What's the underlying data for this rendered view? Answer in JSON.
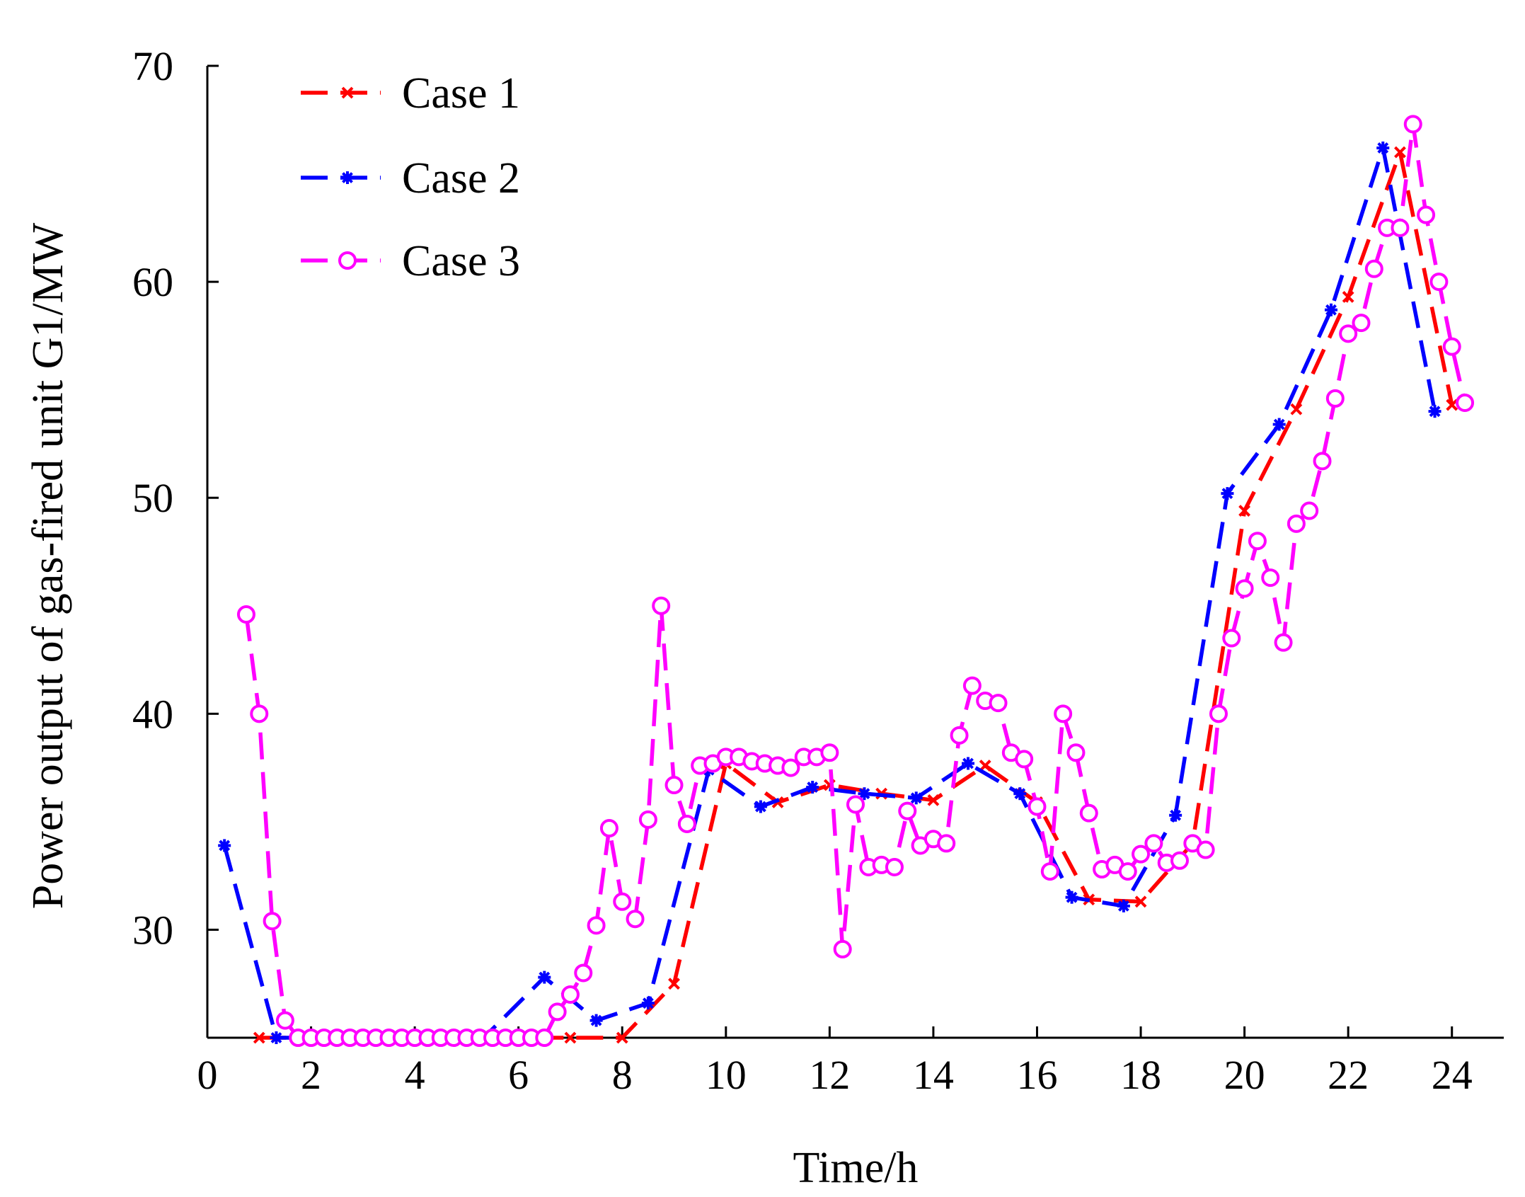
{
  "chart_data": {
    "type": "line",
    "title": "",
    "xlabel": "Time/h",
    "ylabel": "Power output of gas-fired unit G1/MW",
    "xlim": [
      0,
      25
    ],
    "ylim": [
      25,
      70
    ],
    "xticks": [
      0,
      2,
      4,
      6,
      8,
      10,
      12,
      14,
      16,
      18,
      20,
      22,
      24
    ],
    "yticks": [
      30,
      40,
      50,
      60,
      70
    ],
    "grid": false,
    "legend_position": "top-left",
    "series": [
      {
        "name": "Case 1",
        "label": "Case 1",
        "color": "#ff0000",
        "marker": "x",
        "points": [
          [
            1,
            25
          ],
          [
            2,
            25
          ],
          [
            3,
            25
          ],
          [
            4,
            25
          ],
          [
            5,
            25
          ],
          [
            6,
            25
          ],
          [
            7,
            25
          ],
          [
            8,
            25
          ],
          [
            9,
            27.5
          ],
          [
            10,
            37.7
          ],
          [
            11,
            35.9
          ],
          [
            12,
            36.7
          ],
          [
            13,
            36.3
          ],
          [
            14,
            36
          ],
          [
            15,
            37.6
          ],
          [
            16,
            35.9
          ],
          [
            17,
            31.4
          ],
          [
            18,
            31.3
          ],
          [
            19,
            34
          ],
          [
            20,
            49.4
          ],
          [
            21,
            54.1
          ],
          [
            22,
            59.3
          ],
          [
            23,
            66
          ],
          [
            24,
            54.3
          ]
        ]
      },
      {
        "name": "Case 2",
        "label": "Case 2",
        "color": "#0000ff",
        "marker": "asterisk",
        "points": [
          [
            0.33,
            33.9
          ],
          [
            1.33,
            25
          ],
          [
            2.33,
            25
          ],
          [
            3.33,
            25
          ],
          [
            4.33,
            25
          ],
          [
            5.33,
            25
          ],
          [
            6.5,
            27.8
          ],
          [
            7.5,
            25.8
          ],
          [
            8.5,
            26.6
          ],
          [
            9.67,
            37.4
          ],
          [
            10.67,
            35.7
          ],
          [
            11.67,
            36.6
          ],
          [
            12.67,
            36.3
          ],
          [
            13.67,
            36.1
          ],
          [
            14.67,
            37.7
          ],
          [
            15.67,
            36.3
          ],
          [
            16.67,
            31.5
          ],
          [
            17.67,
            31.1
          ],
          [
            18.67,
            35.3
          ],
          [
            19.67,
            50.2
          ],
          [
            20.67,
            53.4
          ],
          [
            21.67,
            58.7
          ],
          [
            22.67,
            66.2
          ],
          [
            23.67,
            54
          ]
        ]
      },
      {
        "name": "Case 3",
        "label": "Case 3",
        "color": "#ff00ff",
        "marker": "circle",
        "points": [
          [
            0.75,
            44.6
          ],
          [
            1,
            40
          ],
          [
            1.25,
            30.4
          ],
          [
            1.5,
            25.8
          ],
          [
            1.75,
            25
          ],
          [
            2,
            25
          ],
          [
            2.25,
            25
          ],
          [
            2.5,
            25
          ],
          [
            2.75,
            25
          ],
          [
            3,
            25
          ],
          [
            3.25,
            25
          ],
          [
            3.5,
            25
          ],
          [
            3.75,
            25
          ],
          [
            4,
            25
          ],
          [
            4.25,
            25
          ],
          [
            4.5,
            25
          ],
          [
            4.75,
            25
          ],
          [
            5,
            25
          ],
          [
            5.25,
            25
          ],
          [
            5.5,
            25
          ],
          [
            5.75,
            25
          ],
          [
            6,
            25
          ],
          [
            6.25,
            25
          ],
          [
            6.5,
            25
          ],
          [
            6.75,
            26.2
          ],
          [
            7,
            27
          ],
          [
            7.25,
            28
          ],
          [
            7.5,
            30.2
          ],
          [
            7.75,
            34.7
          ],
          [
            8,
            31.3
          ],
          [
            8.25,
            30.5
          ],
          [
            8.5,
            35.1
          ],
          [
            8.75,
            45
          ],
          [
            9,
            36.7
          ],
          [
            9.25,
            34.9
          ],
          [
            9.5,
            37.6
          ],
          [
            9.75,
            37.7
          ],
          [
            10,
            38
          ],
          [
            10.25,
            38
          ],
          [
            10.5,
            37.8
          ],
          [
            10.75,
            37.7
          ],
          [
            11,
            37.6
          ],
          [
            11.25,
            37.5
          ],
          [
            11.5,
            38
          ],
          [
            11.75,
            38
          ],
          [
            12,
            38.2
          ],
          [
            12.25,
            29.1
          ],
          [
            12.5,
            35.8
          ],
          [
            12.75,
            32.9
          ],
          [
            13,
            33
          ],
          [
            13.25,
            32.9
          ],
          [
            13.5,
            35.5
          ],
          [
            13.75,
            33.9
          ],
          [
            14,
            34.2
          ],
          [
            14.25,
            34
          ],
          [
            14.5,
            39
          ],
          [
            14.75,
            41.3
          ],
          [
            15,
            40.6
          ],
          [
            15.25,
            40.5
          ],
          [
            15.5,
            38.2
          ],
          [
            15.75,
            37.9
          ],
          [
            16,
            35.7
          ],
          [
            16.25,
            32.7
          ],
          [
            16.5,
            40
          ],
          [
            16.75,
            38.2
          ],
          [
            17,
            35.4
          ],
          [
            17.25,
            32.8
          ],
          [
            17.5,
            33
          ],
          [
            17.75,
            32.7
          ],
          [
            18,
            33.5
          ],
          [
            18.25,
            34
          ],
          [
            18.5,
            33.1
          ],
          [
            18.75,
            33.2
          ],
          [
            19,
            34
          ],
          [
            19.25,
            33.7
          ],
          [
            19.5,
            40
          ],
          [
            19.75,
            43.5
          ],
          [
            20,
            45.8
          ],
          [
            20.25,
            48
          ],
          [
            20.5,
            46.3
          ],
          [
            20.75,
            43.3
          ],
          [
            21,
            48.8
          ],
          [
            21.25,
            49.4
          ],
          [
            21.5,
            51.7
          ],
          [
            21.75,
            54.6
          ],
          [
            22,
            57.6
          ],
          [
            22.25,
            58.1
          ],
          [
            22.5,
            60.6
          ],
          [
            22.75,
            62.5
          ],
          [
            23,
            62.5
          ],
          [
            23.25,
            67.3
          ],
          [
            23.5,
            63.1
          ],
          [
            23.75,
            60
          ],
          [
            24,
            57
          ],
          [
            24.25,
            54.4
          ]
        ]
      }
    ]
  }
}
